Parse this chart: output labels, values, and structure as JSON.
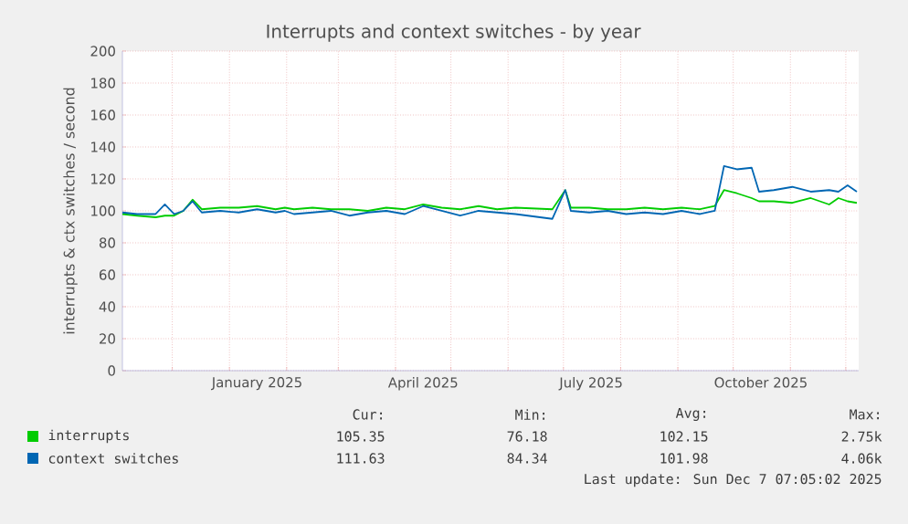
{
  "chart_data": {
    "type": "line",
    "title": "Interrupts and context switches - by year",
    "ylabel": "interrupts & ctx switches / second",
    "x": [
      "2024-11-04",
      "2024-11-12",
      "2024-11-22",
      "2024-11-27",
      "2024-12-02",
      "2024-12-07",
      "2024-12-12",
      "2024-12-17",
      "2024-12-27",
      "2025-01-06",
      "2025-01-16",
      "2025-01-26",
      "2025-01-31",
      "2025-02-05",
      "2025-02-15",
      "2025-02-25",
      "2025-03-07",
      "2025-03-17",
      "2025-03-27",
      "2025-04-06",
      "2025-04-16",
      "2025-04-26",
      "2025-05-06",
      "2025-05-16",
      "2025-05-26",
      "2025-06-05",
      "2025-06-25",
      "2025-07-02",
      "2025-07-05",
      "2025-07-15",
      "2025-07-25",
      "2025-08-04",
      "2025-08-14",
      "2025-08-24",
      "2025-09-03",
      "2025-09-13",
      "2025-09-21",
      "2025-09-26",
      "2025-10-03",
      "2025-10-11",
      "2025-10-15",
      "2025-10-23",
      "2025-11-02",
      "2025-11-12",
      "2025-11-22",
      "2025-11-27",
      "2025-12-02",
      "2025-12-07"
    ],
    "series": [
      {
        "name": "interrupts",
        "color": "#00cc00",
        "values": [
          98,
          97,
          96,
          97,
          97,
          100,
          107,
          101,
          102,
          102,
          103,
          101,
          102,
          101,
          102,
          101,
          101,
          100,
          102,
          101,
          104,
          102,
          101,
          103,
          101,
          102,
          101,
          113,
          102,
          102,
          101,
          101,
          102,
          101,
          102,
          101,
          103,
          113,
          111,
          108,
          106,
          106,
          105,
          108,
          104,
          108,
          106,
          105
        ]
      },
      {
        "name": "context switches",
        "color": "#0066b3",
        "values": [
          99,
          98,
          98,
          104,
          98,
          100,
          106,
          99,
          100,
          99,
          101,
          99,
          100,
          98,
          99,
          100,
          97,
          99,
          100,
          98,
          103,
          100,
          97,
          100,
          99,
          98,
          95,
          113,
          100,
          99,
          100,
          98,
          99,
          98,
          100,
          98,
          100,
          128,
          126,
          127,
          112,
          113,
          115,
          112,
          113,
          112,
          116,
          112
        ]
      }
    ],
    "xlim": [
      "2024-11-04",
      "2025-12-08"
    ],
    "xticks": [
      {
        "value": "2024-12-01",
        "label": null
      },
      {
        "value": "2025-01-01",
        "label": null
      },
      {
        "value": "2025-02-01",
        "label": null
      },
      {
        "value": "2025-03-01",
        "label": null
      },
      {
        "value": "2025-04-01",
        "label": null
      },
      {
        "value": "2025-05-01",
        "label": null
      },
      {
        "value": "2025-06-01",
        "label": null
      },
      {
        "value": "2025-07-01",
        "label": null
      },
      {
        "value": "2025-08-01",
        "label": null
      },
      {
        "value": "2025-09-01",
        "label": null
      },
      {
        "value": "2025-10-01",
        "label": null
      },
      {
        "value": "2025-11-01",
        "label": null
      },
      {
        "value": "2025-12-01",
        "label": null
      },
      {
        "value": "2025-01-16",
        "label": "January 2025"
      },
      {
        "value": "2025-04-16",
        "label": "April 2025"
      },
      {
        "value": "2025-07-16",
        "label": "July 2025"
      },
      {
        "value": "2025-10-16",
        "label": "October 2025"
      }
    ],
    "ylim": [
      0,
      200
    ],
    "yticks": [
      0,
      20,
      40,
      60,
      80,
      100,
      120,
      140,
      160,
      180,
      200
    ],
    "grid": true,
    "legend": "bottom",
    "annotations": [
      "Cur:",
      "Min:",
      "Avg:",
      "Max:",
      "105.35",
      "76.18",
      "102.15",
      "2.75k",
      "111.63",
      "84.34",
      "101.98",
      "4.06k",
      "Last update: Sun Dec  7 07:05:02 2025"
    ]
  }
}
